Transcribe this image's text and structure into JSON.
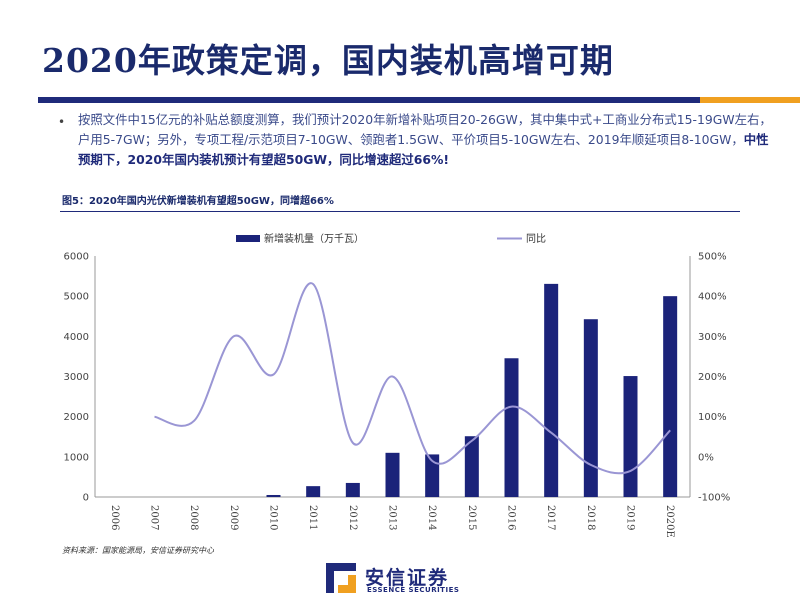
{
  "slide": {
    "title": "2020年政策定调，国内装机高增可期",
    "bullet_normal": "按照文件中15亿元的补贴总额度测算，我们预计2020年新增补贴项目20-26GW，其中集中式+工商业分布式15-19GW左右，户用5-7GW；另外，专项工程/示范项目7-10GW、领跑者1.5GW、平价项目5-10GW左右、2019年顺延项目8-10GW，",
    "bullet_emphasis": "中性预期下，2020年国内装机预计有望超50GW，同比增速超过66%!"
  },
  "figure": {
    "caption": "图5：2020年国内光伏新增装机有望超50GW，同增超66%",
    "source": "资料来源：国家能源局，安信证券研究中心"
  },
  "brand": {
    "name_cn": "安信证券",
    "name_en": "ESSENCE SECURITIES"
  },
  "colors": {
    "bar": "#1b237a",
    "line": "#9a96d4",
    "axis_text": "#444444",
    "title": "#1a2a6c",
    "accent_orange": "#f0a020"
  },
  "chart_data": {
    "type": "bar",
    "categories": [
      "2006",
      "2007",
      "2008",
      "2009",
      "2010",
      "2011",
      "2012",
      "2013",
      "2014",
      "2015",
      "2016",
      "2017",
      "2018",
      "2019",
      "2020E"
    ],
    "series": [
      {
        "name": "新增装机量（万千瓦）",
        "type": "bar",
        "axis": "left",
        "values": [
          0,
          0,
          0,
          0,
          50,
          270,
          350,
          1100,
          1060,
          1513,
          3454,
          5306,
          4426,
          3011,
          5000
        ]
      },
      {
        "name": "同比",
        "type": "line",
        "axis": "right",
        "values": [
          null,
          100,
          90,
          300,
          205,
          430,
          35,
          200,
          -10,
          40,
          125,
          60,
          -20,
          -35,
          66
        ]
      }
    ],
    "y_left": {
      "min": 0,
      "max": 6000,
      "ticks": [
        "0",
        "1000",
        "2000",
        "3000",
        "4000",
        "5000",
        "6000"
      ]
    },
    "y_right": {
      "min": -100,
      "max": 500,
      "ticks": [
        "-100%",
        "0%",
        "100%",
        "200%",
        "300%",
        "400%",
        "500%"
      ]
    },
    "legend_position": "top",
    "grid": false
  }
}
